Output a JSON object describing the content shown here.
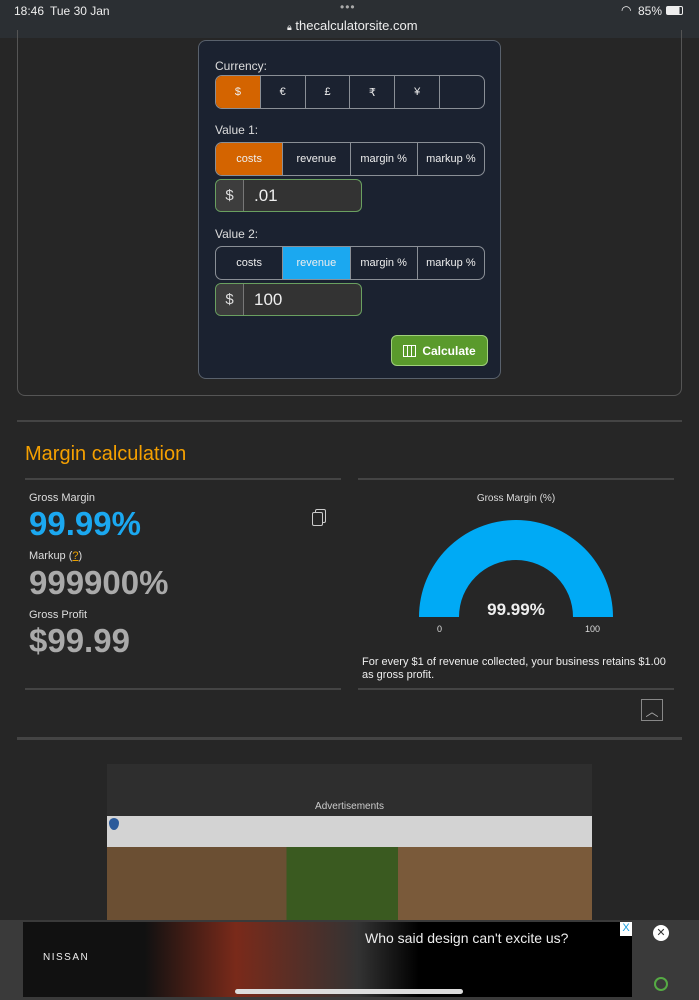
{
  "status": {
    "time": "18:46",
    "date": "Tue 30 Jan",
    "battery": "85%",
    "url": "thecalculatorsite.com"
  },
  "calc": {
    "currency_label": "Currency:",
    "currencies": [
      "$",
      "€",
      "£",
      "₹",
      "¥",
      ""
    ],
    "selected_currency": "$",
    "value1_label": "Value 1:",
    "value1_tabs": [
      "costs",
      "revenue",
      "margin %",
      "markup %"
    ],
    "value1_selected": "costs",
    "value1_prefix": "$",
    "value1": ".01",
    "value2_label": "Value 2:",
    "value2_tabs": [
      "costs",
      "revenue",
      "margin %",
      "markup %"
    ],
    "value2_selected": "revenue",
    "value2_prefix": "$",
    "value2": "100",
    "calculate_label": "Calculate",
    "accent_orange": "#d46400",
    "accent_blue": "#1ba8f0"
  },
  "results": {
    "title": "Margin calculation",
    "gross_margin_label": "Gross Margin",
    "gross_margin": "99.99%",
    "markup_label": "Markup (",
    "markup_help": "?",
    "markup_close": ")",
    "markup": "999900%",
    "gross_profit_label": "Gross Profit",
    "gross_profit": "$99.99"
  },
  "gauge": {
    "title": "Gross Margin (%)",
    "value": 99.99,
    "value_label": "99.99%",
    "min_label": "0",
    "max_label": "100",
    "color": "#00aaf5"
  },
  "summary": "For every $1 of revenue collected, your business retains $1.00 as gross profit.",
  "ads": {
    "label": "Advertisements",
    "banner_text": "Who said design can't excite us?",
    "brand": "NISSAN"
  }
}
